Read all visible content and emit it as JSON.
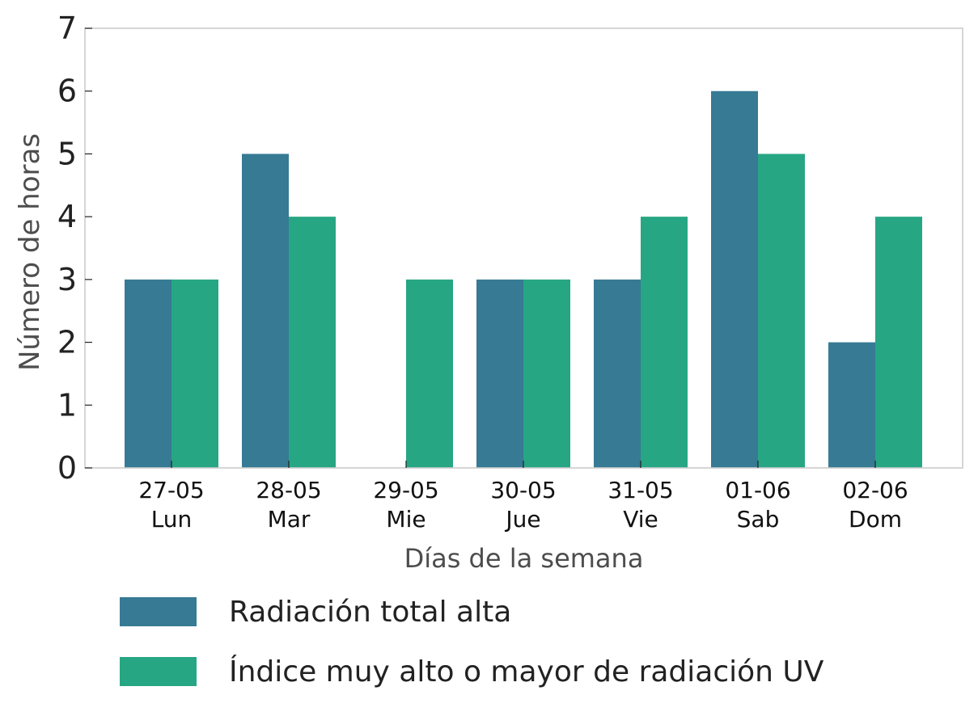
{
  "chart_data": {
    "type": "bar",
    "xlabel": "Días de la semana",
    "ylabel": "Número de horas",
    "ylim": [
      0,
      7
    ],
    "yticks": [
      "0",
      "1",
      "2",
      "3",
      "4",
      "5",
      "6",
      "7"
    ],
    "categories": [
      {
        "date": "27-05",
        "day": "Lun"
      },
      {
        "date": "28-05",
        "day": "Mar"
      },
      {
        "date": "29-05",
        "day": "Mie"
      },
      {
        "date": "30-05",
        "day": "Jue"
      },
      {
        "date": "31-05",
        "day": "Vie"
      },
      {
        "date": "01-06",
        "day": "Sab"
      },
      {
        "date": "02-06",
        "day": "Dom"
      }
    ],
    "series": [
      {
        "name": "Radiación total alta",
        "color": "#367a94",
        "values": [
          3,
          5,
          0,
          3,
          3,
          6,
          2
        ]
      },
      {
        "name": "Índice muy alto o mayor de radiación UV",
        "color": "#27a684",
        "values": [
          3,
          4,
          3,
          3,
          4,
          5,
          4
        ]
      }
    ],
    "grid": false,
    "legend_position": "bottom-left"
  }
}
